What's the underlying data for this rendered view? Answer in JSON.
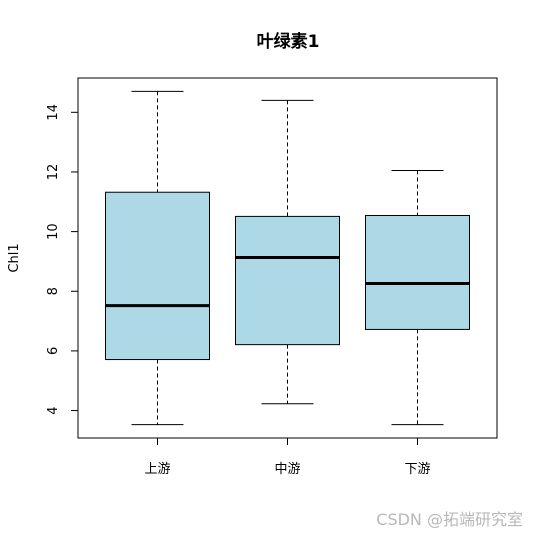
{
  "chart_data": {
    "type": "box",
    "title": "叶绿素1",
    "y_label": "Chl1",
    "categories": [
      "上游",
      "中游",
      "下游"
    ],
    "min": [
      3.53,
      4.23,
      3.53
    ],
    "q1": [
      5.71,
      6.21,
      6.72
    ],
    "median": [
      7.52,
      9.13,
      8.26
    ],
    "q3": [
      11.32,
      10.51,
      10.54
    ],
    "max": [
      14.7,
      14.4,
      12.05
    ],
    "color": "#add8e6",
    "ylim": [
      3.08,
      15.15
    ],
    "yticks": [
      4,
      6,
      8,
      10,
      12,
      14
    ]
  },
  "watermark": "CSDN @拓端研究室"
}
